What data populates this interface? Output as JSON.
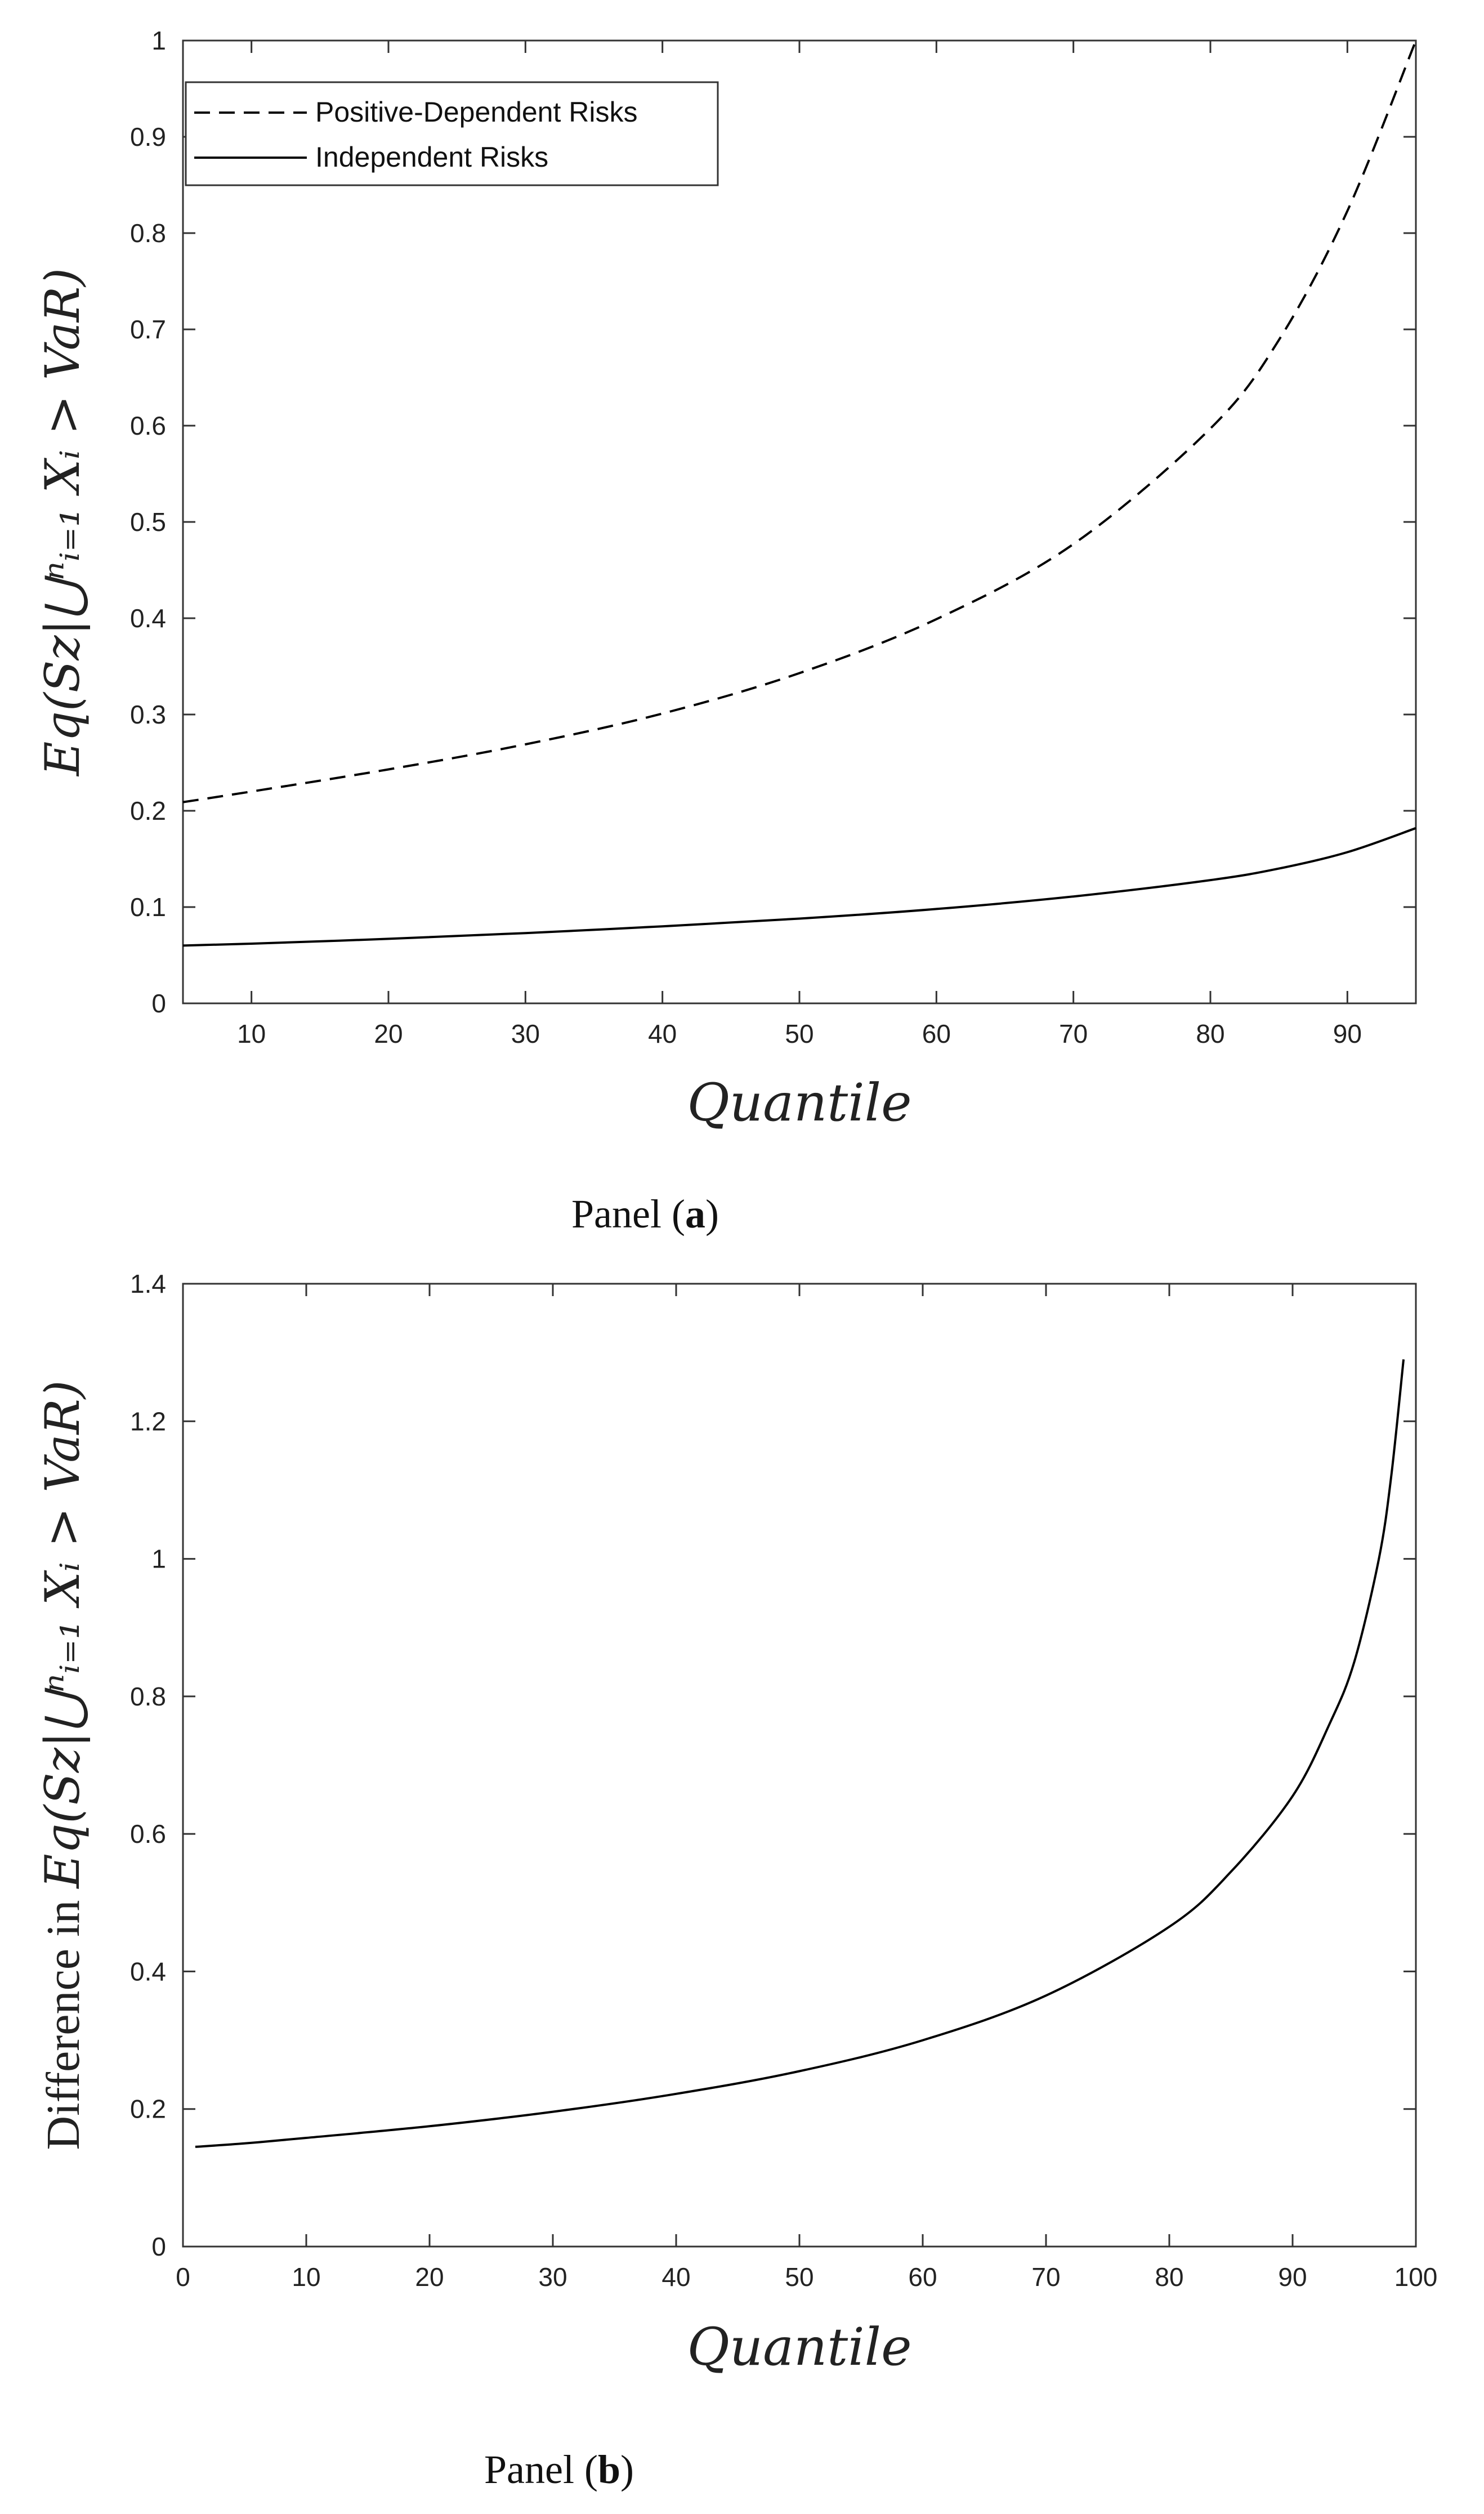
{
  "chart_data": [
    {
      "type": "line",
      "panel_caption": {
        "prefix": "Panel (",
        "letter": "a",
        "suffix": ")"
      },
      "ylabel": "Eq(Sz|⋃ⁿᵢ₌₁ Xᵢ > VaR)",
      "xlabel": "Quantile",
      "xlim": [
        5,
        95
      ],
      "ylim": [
        0,
        1
      ],
      "x_ticks": [
        10,
        20,
        30,
        40,
        50,
        60,
        70,
        80,
        90
      ],
      "y_ticks": [
        0,
        0.1,
        0.2,
        0.3,
        0.4,
        0.5,
        0.6,
        0.7,
        0.8,
        0.9,
        1
      ],
      "y_tick_labels": [
        "0",
        "0.1",
        "0.2",
        "0.3",
        "0.4",
        "0.5",
        "0.6",
        "0.7",
        "0.8",
        "0.9",
        "1"
      ],
      "grid": false,
      "legend_position": "top-left",
      "x": [
        5,
        10,
        20,
        30,
        40,
        50,
        60,
        70,
        80,
        85,
        90,
        95
      ],
      "series": [
        {
          "name": "Positive-Dependent Risks",
          "style": "dashed",
          "color": "#000000",
          "values": [
            0.209,
            0.22,
            0.243,
            0.269,
            0.301,
            0.343,
            0.399,
            0.477,
            0.597,
            0.689,
            0.823,
            1.0
          ]
        },
        {
          "name": "Independent Risks",
          "style": "solid",
          "color": "#000000",
          "values": [
            0.06,
            0.062,
            0.067,
            0.073,
            0.08,
            0.088,
            0.098,
            0.111,
            0.128,
            0.14,
            0.157,
            0.182
          ]
        }
      ]
    },
    {
      "type": "line",
      "panel_caption": {
        "prefix": "Panel (",
        "letter": "b",
        "suffix": ")"
      },
      "ylabel_prefix": "Difference in ",
      "ylabel": "Eq(Sz|⋃ⁿᵢ₌₁ Xᵢ > VaR)",
      "xlabel": "Quantile",
      "xlim": [
        0,
        100
      ],
      "ylim": [
        0,
        1.4
      ],
      "x_ticks": [
        0,
        10,
        20,
        30,
        40,
        50,
        60,
        70,
        80,
        90,
        100
      ],
      "y_ticks": [
        0,
        0.2,
        0.4,
        0.6,
        0.8,
        1,
        1.2,
        1.4
      ],
      "y_tick_labels": [
        "0",
        "0.2",
        "0.4",
        "0.6",
        "0.8",
        "1",
        "1.2",
        "1.4"
      ],
      "grid": false,
      "x": [
        1,
        5,
        10,
        20,
        30,
        40,
        50,
        60,
        70,
        80,
        85,
        90,
        93,
        95,
        97,
        98,
        99
      ],
      "series": [
        {
          "style": "solid",
          "color": "#000000",
          "values": [
            0.145,
            0.15,
            0.158,
            0.175,
            0.196,
            0.222,
            0.255,
            0.3,
            0.365,
            0.465,
            0.545,
            0.655,
            0.76,
            0.85,
            1.0,
            1.12,
            1.29
          ]
        }
      ]
    }
  ]
}
